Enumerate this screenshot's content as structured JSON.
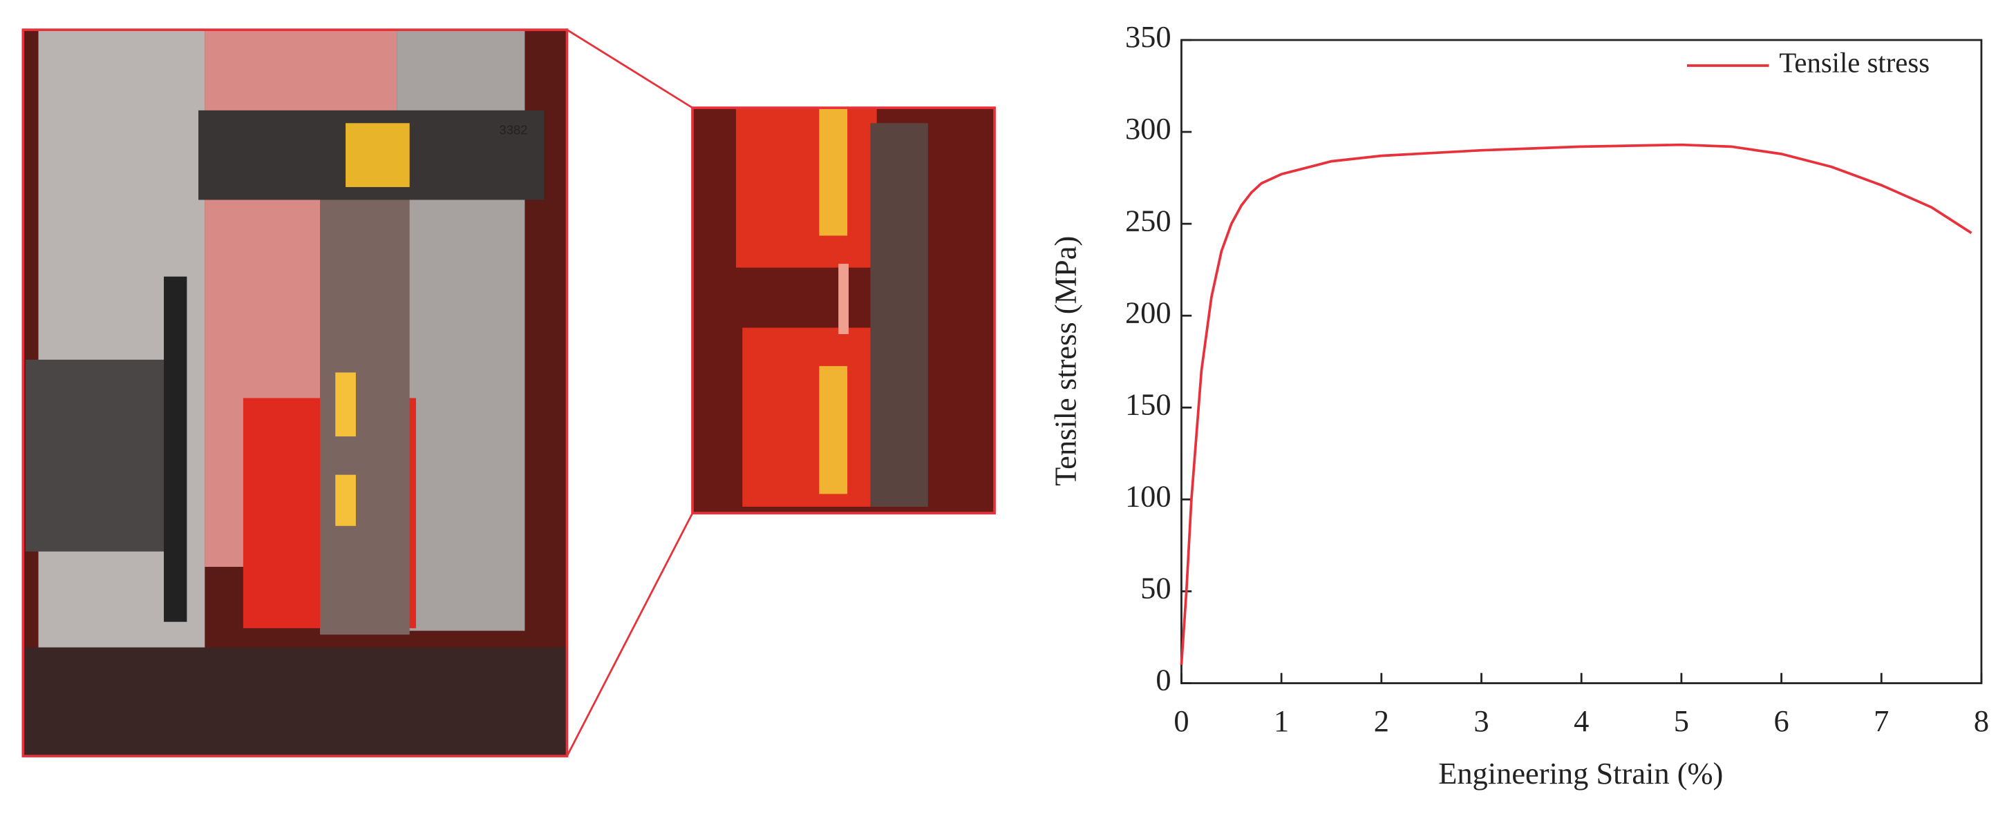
{
  "photo_label": "3382",
  "chart_data": {
    "type": "line",
    "xlabel": "Engineering Strain (%)",
    "ylabel": "Tensile stress (MPa)",
    "x": [
      0,
      0.05,
      0.1,
      0.2,
      0.3,
      0.4,
      0.5,
      0.6,
      0.7,
      0.8,
      1,
      1.5,
      2,
      3,
      4,
      5,
      5.5,
      6,
      6.5,
      7,
      7.5,
      7.9
    ],
    "series": [
      {
        "name": "Tensile stress",
        "color": "#e8313a",
        "values": [
          10,
          50,
          100,
          170,
          210,
          235,
          250,
          260,
          267,
          272,
          277,
          284,
          287,
          290,
          292,
          293,
          292,
          288,
          281,
          271,
          259,
          245
        ]
      }
    ],
    "xlim": [
      0,
      8
    ],
    "xticks": [
      0,
      1,
      2,
      3,
      4,
      5,
      6,
      7,
      8
    ],
    "ylim": [
      0,
      350
    ],
    "yticks": [
      0,
      50,
      100,
      150,
      200,
      250,
      300,
      350
    ],
    "grid": false,
    "legend": "upper right"
  }
}
